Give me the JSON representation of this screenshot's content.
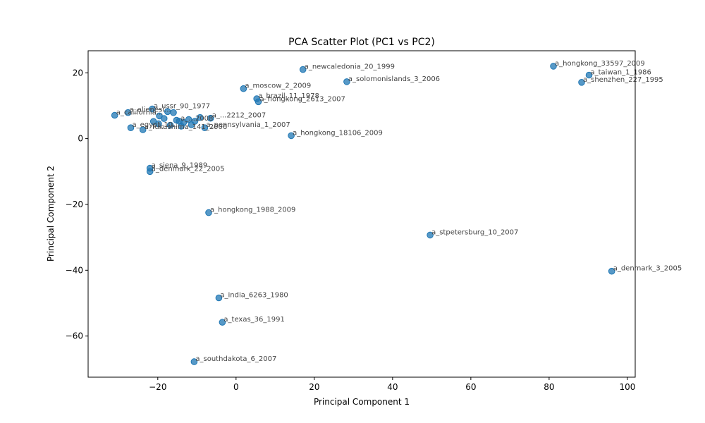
{
  "chart_data": {
    "type": "scatter",
    "title": "PCA Scatter Plot (PC1 vs PC2)",
    "xlabel": "Principal Component 1",
    "ylabel": "Principal Component 2",
    "xlim": [
      -37.8,
      102.0
    ],
    "ylim": [
      -72.5,
      26.7
    ],
    "xticks": [
      -20,
      0,
      20,
      40,
      60,
      80,
      100
    ],
    "yticks": [
      -60,
      -40,
      -20,
      0,
      20
    ],
    "grid": false,
    "marker_color": "#1f77b4",
    "label_color": "#444444",
    "points": [
      {
        "label": "a_hongkong_33597_2009",
        "x": 81.1,
        "y": 22.0
      },
      {
        "label": "a_taiwan_1_1986",
        "x": 90.2,
        "y": 19.3
      },
      {
        "label": "a_shenzhen_227_1995",
        "x": 88.3,
        "y": 17.1
      },
      {
        "label": "a_newcaledonia_20_1999",
        "x": 17.1,
        "y": 21.0
      },
      {
        "label": "a_solomonislands_3_2006",
        "x": 28.3,
        "y": 17.3
      },
      {
        "label": "a_moscow_2_2009",
        "x": 1.9,
        "y": 15.2
      },
      {
        "label": "a_brazil_11_1978",
        "x": 5.3,
        "y": 12.1
      },
      {
        "label": "a_hongkong_2613_2007",
        "x": 5.7,
        "y": 11.2
      },
      {
        "label": "a_ussr_90_1977",
        "x": -21.4,
        "y": 9.0
      },
      {
        "label": "a_alienesi...",
        "x": -27.6,
        "y": 7.9
      },
      {
        "label": "a_california...",
        "x": -31.0,
        "y": 7.1
      },
      {
        "label": "a_hongkong_18106_2009",
        "x": 14.1,
        "y": 0.9
      },
      {
        "label": "a_fukushima_141_2006",
        "x": -23.8,
        "y": 2.7
      },
      {
        "label": "a_egypt_10...",
        "x": -26.9,
        "y": 3.3
      },
      {
        "label": "a_pennsylvania_1_2007",
        "x": -8.0,
        "y": 3.3
      },
      {
        "label": "a_...2212_2007",
        "x": -6.5,
        "y": 6.2
      },
      {
        "label": "a_...2008",
        "x": -14.5,
        "y": 5.3
      },
      {
        "label": "",
        "x": -17.5,
        "y": 8.2
      },
      {
        "label": "",
        "x": -16.0,
        "y": 7.9
      },
      {
        "label": "",
        "x": -19.6,
        "y": 6.9
      },
      {
        "label": "",
        "x": -18.4,
        "y": 6.1
      },
      {
        "label": "",
        "x": -21.1,
        "y": 5.2
      },
      {
        "label": "",
        "x": -19.8,
        "y": 4.5
      },
      {
        "label": "",
        "x": -15.2,
        "y": 5.6
      },
      {
        "label": "",
        "x": -13.4,
        "y": 4.9
      },
      {
        "label": "",
        "x": -12.1,
        "y": 5.8
      },
      {
        "label": "",
        "x": -10.5,
        "y": 5.3
      },
      {
        "label": "",
        "x": -9.2,
        "y": 6.4
      },
      {
        "label": "",
        "x": -11.4,
        "y": 4.2
      },
      {
        "label": "",
        "x": -16.8,
        "y": 4.1
      },
      {
        "label": "",
        "x": -14.0,
        "y": 3.8
      },
      {
        "label": "a_siena_9_1989",
        "x": -22.0,
        "y": -9.0
      },
      {
        "label": "a_denmark_22_2005",
        "x": -22.0,
        "y": -10.0
      },
      {
        "label": "a_hongkong_1988_2009",
        "x": -7.0,
        "y": -22.5
      },
      {
        "label": "a_stpetersburg_10_2007",
        "x": 49.6,
        "y": -29.3
      },
      {
        "label": "a_denmark_3_2005",
        "x": 96.0,
        "y": -40.3
      },
      {
        "label": "a_india_6263_1980",
        "x": -4.4,
        "y": -48.4
      },
      {
        "label": "a_texas_36_1991",
        "x": -3.5,
        "y": -55.8
      },
      {
        "label": "a_southdakota_6_2007",
        "x": -10.7,
        "y": -67.8
      }
    ]
  }
}
